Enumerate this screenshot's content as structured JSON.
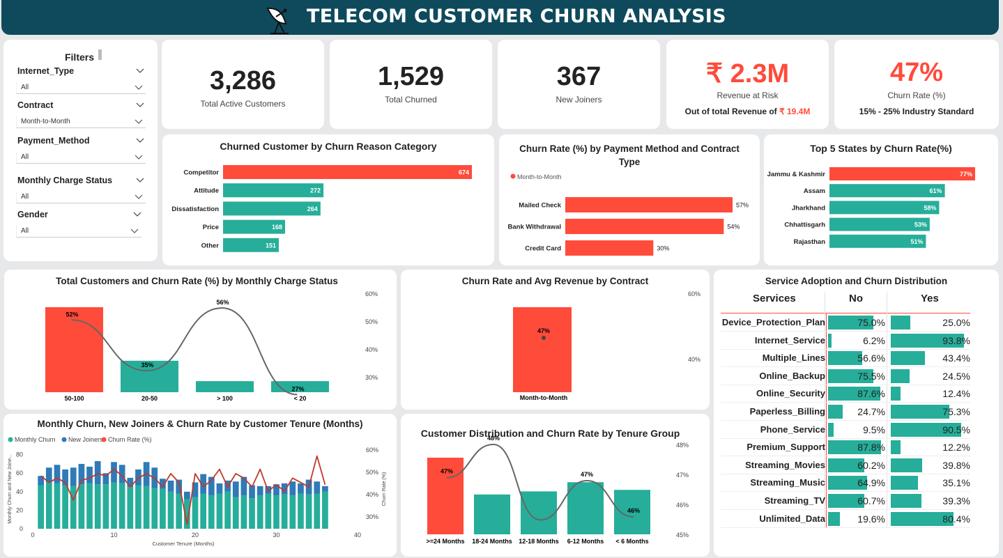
{
  "header": {
    "title": "TELECOM CUSTOMER CHURN ANALYSIS"
  },
  "filters": {
    "title": "Filters",
    "items": [
      {
        "label": "Internet_Type",
        "value": "All"
      },
      {
        "label": "Contract",
        "value": "Month-to-Month"
      },
      {
        "label": "Payment_Method",
        "value": "All"
      },
      {
        "label": "Monthly Charge Status",
        "value": "All"
      },
      {
        "label": "Gender",
        "value": "All"
      }
    ]
  },
  "kpis": {
    "active": {
      "value": "3,286",
      "label": "Total Active Customers"
    },
    "churned": {
      "value": "1,529",
      "label": "Total Churned"
    },
    "joiners": {
      "value": "367",
      "label": "New Joiners"
    },
    "revenue": {
      "value": "₹ 2.3M",
      "label": "Revenue at Risk",
      "sub_prefix": "Out of total Revenue of ",
      "sub_value": "₹ 19.4M"
    },
    "churn_rate": {
      "value": "47%",
      "label": "Churn Rate (%)",
      "sub": "15% - 25% Industry Standard"
    }
  },
  "colors": {
    "red": "#ff4b3a",
    "teal": "#26ae9a",
    "blue": "#2f7ab7",
    "header": "#0e4a5c",
    "line": "#666666"
  },
  "chart_data": [
    {
      "id": "churn-reason",
      "type": "bar",
      "title": "Churned Customer by Churn Reason Category",
      "categories": [
        "Competitor",
        "Attitude",
        "Dissatisfaction",
        "Price",
        "Other"
      ],
      "values": [
        674,
        272,
        264,
        168,
        151
      ],
      "value_labels": [
        "674",
        "272",
        "264",
        "168",
        "151"
      ],
      "highlight": "Competitor"
    },
    {
      "id": "payment-contract",
      "type": "bar",
      "title": "Churn Rate (%) by Payment Method and Contract Type",
      "legend": "Month-to-Month",
      "categories": [
        "Mailed Check",
        "Bank Withdrawal",
        "Credit Card"
      ],
      "values": [
        57,
        54,
        30
      ],
      "value_labels": [
        "57%",
        "54%",
        "30%"
      ]
    },
    {
      "id": "top-states",
      "type": "bar",
      "title": "Top 5 States by Churn Rate(%)",
      "categories": [
        "Jammu & Kashmir",
        "Assam",
        "Jharkhand",
        "Chhattisgarh",
        "Rajasthan"
      ],
      "values": [
        77,
        61,
        58,
        53,
        51
      ],
      "value_labels": [
        "77%",
        "61%",
        "58%",
        "53%",
        "51%"
      ],
      "highlight": "Jammu & Kashmir"
    },
    {
      "id": "monthly-charge",
      "type": "bar",
      "title": "Total Customers and Churn Rate (%) by Monthly Charge Status",
      "categories": [
        "50-100",
        "20-50",
        "> 100",
        "< 20"
      ],
      "bar_values": [
        100,
        37,
        13,
        13
      ],
      "churn_rate": [
        52,
        35,
        56,
        27
      ],
      "rate_labels": [
        "52%",
        "35%",
        "56%",
        "27%"
      ],
      "y2_ticks": [
        "60%",
        "50%",
        "40%",
        "30%"
      ],
      "y2lim": [
        25,
        60
      ]
    },
    {
      "id": "contract-revenue",
      "type": "bar",
      "title": "Churn Rate and Avg Revenue by Contract",
      "categories": [
        "Month-to-Month"
      ],
      "churn_rate": [
        47
      ],
      "rate_labels": [
        "47%"
      ],
      "y2_ticks": [
        "60%",
        "40%"
      ]
    },
    {
      "id": "tenure-monthly",
      "type": "bar",
      "title": "Monthly Churn, New Joiners & Churn Rate by Customer Tenure (Months)",
      "legend": [
        "Monthly Churn",
        "New Joiners",
        "Churn Rate (%)"
      ],
      "xlabel": "Customer Tenure (Months)",
      "ylabel": "Monthly Churn and New Joine...",
      "y2label": "Churn Rate (%)",
      "x": [
        1,
        2,
        3,
        4,
        5,
        6,
        7,
        8,
        9,
        10,
        11,
        12,
        13,
        14,
        15,
        16,
        17,
        18,
        19,
        20,
        21,
        22,
        23,
        24,
        25,
        26,
        27,
        28,
        29,
        30,
        31,
        32,
        33,
        34,
        35,
        36
      ],
      "churn": [
        47,
        50,
        49,
        47,
        46,
        48,
        49,
        48,
        48,
        50,
        49,
        45,
        47,
        46,
        44,
        43,
        40,
        38,
        32,
        34,
        38,
        36,
        38,
        40,
        34,
        36,
        33,
        36,
        38,
        36,
        37,
        36,
        38,
        37,
        38,
        40
      ],
      "joiners": [
        10,
        16,
        20,
        17,
        20,
        22,
        18,
        25,
        12,
        22,
        20,
        10,
        17,
        26,
        22,
        11,
        12,
        15,
        8,
        16,
        21,
        20,
        11,
        12,
        17,
        20,
        14,
        10,
        8,
        12,
        12,
        15,
        11,
        16,
        13,
        6
      ],
      "rate": [
        49,
        46,
        48,
        46,
        38,
        47,
        48,
        50,
        49,
        52,
        49,
        44,
        48,
        50,
        48,
        44,
        50,
        46,
        27,
        50,
        44,
        47,
        52,
        44,
        50,
        48,
        44,
        52,
        42,
        45,
        42,
        48,
        46,
        44,
        58,
        45
      ],
      "xticks": [
        0,
        10,
        20,
        30,
        40
      ],
      "yticks": [
        0,
        20,
        40,
        60,
        80
      ],
      "y2_ticks": [
        "60%",
        "50%",
        "40%",
        "30%"
      ],
      "ylim": [
        0,
        88
      ],
      "y2lim": [
        25,
        62
      ],
      "xlim": [
        0,
        40
      ]
    },
    {
      "id": "tenure-group",
      "type": "bar",
      "title": "Customer Distribution and Churn Rate by Tenure Group",
      "categories": [
        ">=24 Months",
        "18-24 Months",
        "12-18 Months",
        "6-12 Months",
        "< 6 Months"
      ],
      "bar_values": [
        100,
        52,
        56,
        68,
        58
      ],
      "churn_rate": [
        46.9,
        48.0,
        45.5,
        46.8,
        45.6
      ],
      "rate_labels": [
        "47%",
        "48%",
        "",
        "47%",
        "46%"
      ],
      "y2_ticks": [
        "48%",
        "47%",
        "46%",
        "45%"
      ],
      "y2lim": [
        45,
        48
      ]
    }
  ],
  "services": {
    "title": "Service Adoption and Churn Distribution",
    "col_services": "Services",
    "col_no": "No",
    "col_yes": "Yes",
    "rows": [
      {
        "name": "Device_Protection_Plan",
        "no": 75.0,
        "no_label": "75.0%",
        "yes": 25.0,
        "yes_label": "25.0%"
      },
      {
        "name": "Internet_Service",
        "no": 6.2,
        "no_label": "6.2%",
        "yes": 93.8,
        "yes_label": "93.8%"
      },
      {
        "name": "Multiple_Lines",
        "no": 56.6,
        "no_label": "56.6%",
        "yes": 43.4,
        "yes_label": "43.4%"
      },
      {
        "name": "Online_Backup",
        "no": 75.5,
        "no_label": "75.5%",
        "yes": 24.5,
        "yes_label": "24.5%"
      },
      {
        "name": "Online_Security",
        "no": 87.6,
        "no_label": "87.6%",
        "yes": 12.4,
        "yes_label": "12.4%"
      },
      {
        "name": "Paperless_Billing",
        "no": 24.7,
        "no_label": "24.7%",
        "yes": 75.3,
        "yes_label": "75.3%"
      },
      {
        "name": "Phone_Service",
        "no": 9.5,
        "no_label": "9.5%",
        "yes": 90.5,
        "yes_label": "90.5%"
      },
      {
        "name": "Premium_Support",
        "no": 87.8,
        "no_label": "87.8%",
        "yes": 12.2,
        "yes_label": "12.2%"
      },
      {
        "name": "Streaming_Movies",
        "no": 60.2,
        "no_label": "60.2%",
        "yes": 39.8,
        "yes_label": "39.8%"
      },
      {
        "name": "Streaming_Music",
        "no": 64.9,
        "no_label": "64.9%",
        "yes": 35.1,
        "yes_label": "35.1%"
      },
      {
        "name": "Streaming_TV",
        "no": 60.7,
        "no_label": "60.7%",
        "yes": 39.3,
        "yes_label": "39.3%"
      },
      {
        "name": "Unlimited_Data",
        "no": 19.6,
        "no_label": "19.6%",
        "yes": 80.4,
        "yes_label": "80.4%"
      }
    ]
  }
}
